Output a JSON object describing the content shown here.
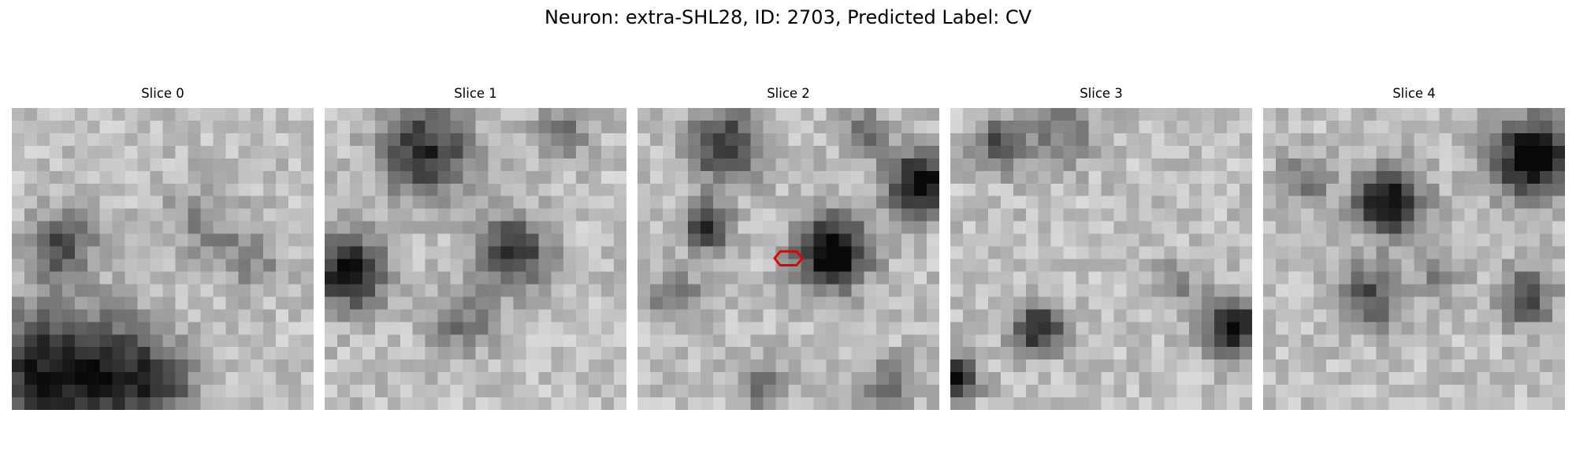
{
  "figure": {
    "title": "Neuron: extra-SHL28, ID: 2703, Predicted Label: CV",
    "marker_color": "#e00000"
  },
  "slices": [
    {
      "title": "Slice 0"
    },
    {
      "title": "Slice 1"
    },
    {
      "title": "Slice 2"
    },
    {
      "title": "Slice 3"
    },
    {
      "title": "Slice 4"
    }
  ]
}
